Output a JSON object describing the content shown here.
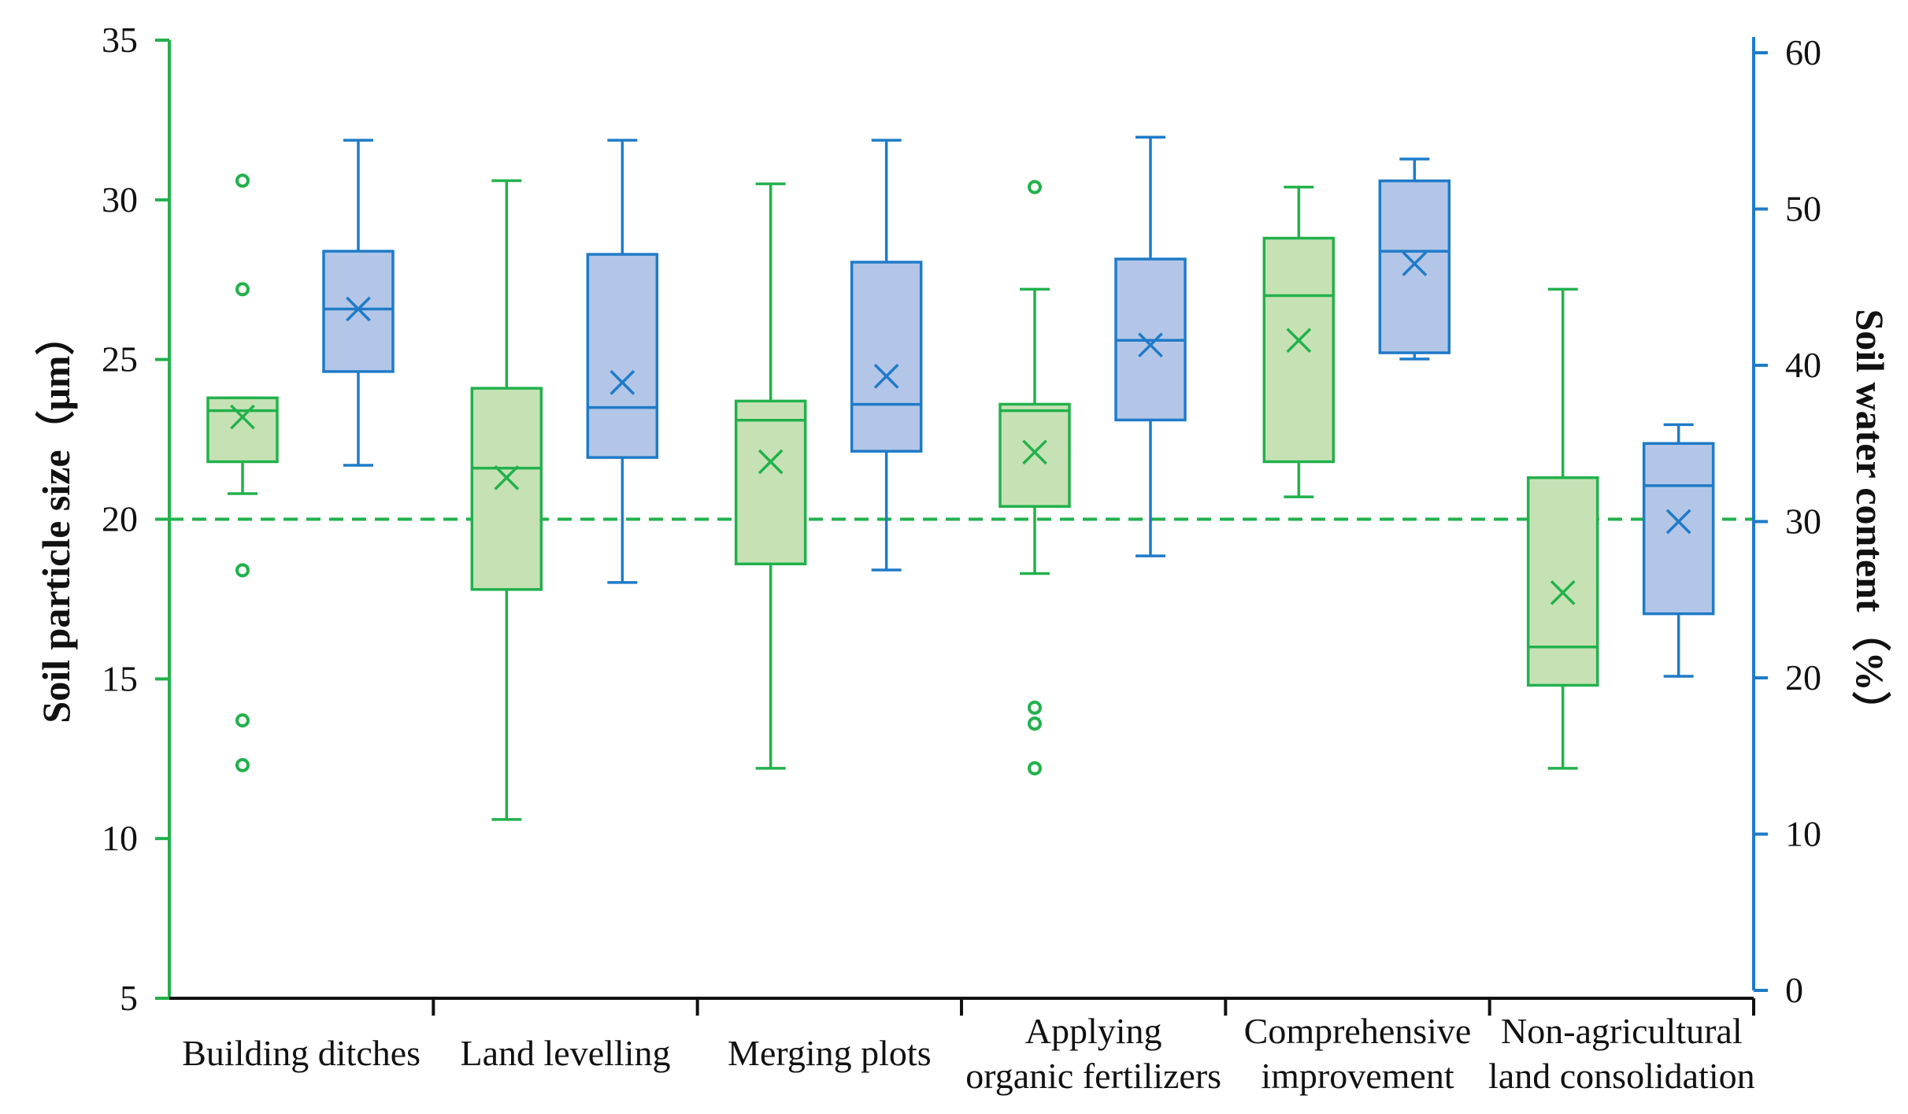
{
  "chart_data": {
    "type": "boxplot",
    "categories": [
      "Building ditches",
      "Land levelling",
      "Merging plots",
      "Applying organic fertilizers",
      "Comprehensive improvement",
      "Non-agricultural land consolidation"
    ],
    "category_labels": [
      [
        "Building ditches"
      ],
      [
        "Land levelling"
      ],
      [
        "Merging plots"
      ],
      [
        "Applying",
        "organic fertilizers"
      ],
      [
        "Comprehensive",
        "improvement"
      ],
      [
        "Non-agricultural",
        "land consolidation"
      ]
    ],
    "left_axis": {
      "label": "Soil particle size（μm）",
      "range": [
        5,
        35
      ],
      "ticks": [
        5,
        10,
        15,
        20,
        25,
        30,
        35
      ],
      "color": "#22b14c"
    },
    "right_axis": {
      "label": "Soil water content（%）",
      "range": [
        0,
        60
      ],
      "ticks": [
        0,
        10,
        20,
        30,
        40,
        50,
        60
      ],
      "color": "#1f7bc8"
    },
    "reference_line": {
      "axis": "left",
      "value": 20,
      "style": "dashed",
      "color": "#22b14c"
    },
    "series": [
      {
        "name": "Soil particle size",
        "axis": "left",
        "stroke": "#22b14c",
        "fill": "#c6e2b5",
        "boxes": [
          {
            "whisker_low": 20.8,
            "q1": 21.8,
            "median": 23.4,
            "q3": 23.8,
            "whisker_high": 23.8,
            "mean": 23.2,
            "outliers": [
              30.6,
              27.2,
              18.4,
              13.7,
              12.3
            ]
          },
          {
            "whisker_low": 10.6,
            "q1": 17.8,
            "median": 21.6,
            "q3": 24.1,
            "whisker_high": 30.6,
            "mean": 21.3,
            "outliers": []
          },
          {
            "whisker_low": 12.2,
            "q1": 18.6,
            "median": 23.1,
            "q3": 23.7,
            "whisker_high": 30.5,
            "mean": 21.8,
            "outliers": []
          },
          {
            "whisker_low": 18.3,
            "q1": 20.4,
            "median": 23.4,
            "q3": 23.6,
            "whisker_high": 27.2,
            "mean": 22.1,
            "outliers": [
              30.4,
              14.1,
              13.6,
              12.2
            ]
          },
          {
            "whisker_low": 20.7,
            "q1": 21.8,
            "median": 27.0,
            "q3": 28.8,
            "whisker_high": 30.4,
            "mean": 25.6,
            "outliers": []
          },
          {
            "whisker_low": 12.2,
            "q1": 14.8,
            "median": 16.0,
            "q3": 21.3,
            "whisker_high": 27.2,
            "mean": 17.7,
            "outliers": []
          }
        ]
      },
      {
        "name": "Soil water content",
        "axis": "right",
        "stroke": "#1f7bc8",
        "fill": "#b3c6e7",
        "boxes": [
          {
            "whisker_low": 33.6,
            "q1": 39.6,
            "median": 43.6,
            "q3": 47.3,
            "whisker_high": 54.4,
            "mean": 43.6,
            "outliers": []
          },
          {
            "whisker_low": 26.1,
            "q1": 34.1,
            "median": 37.3,
            "q3": 47.1,
            "whisker_high": 54.4,
            "mean": 38.9,
            "outliers": []
          },
          {
            "whisker_low": 26.9,
            "q1": 34.5,
            "median": 37.5,
            "q3": 46.6,
            "whisker_high": 54.4,
            "mean": 39.3,
            "outliers": []
          },
          {
            "whisker_low": 27.8,
            "q1": 36.5,
            "median": 41.6,
            "q3": 46.8,
            "whisker_high": 54.6,
            "mean": 41.3,
            "outliers": []
          },
          {
            "whisker_low": 40.4,
            "q1": 40.8,
            "median": 47.3,
            "q3": 51.8,
            "whisker_high": 53.2,
            "mean": 46.5,
            "outliers": []
          },
          {
            "whisker_low": 20.1,
            "q1": 24.1,
            "median": 32.3,
            "q3": 35.0,
            "whisker_high": 36.2,
            "mean": 30.0,
            "outliers": []
          }
        ]
      }
    ]
  }
}
